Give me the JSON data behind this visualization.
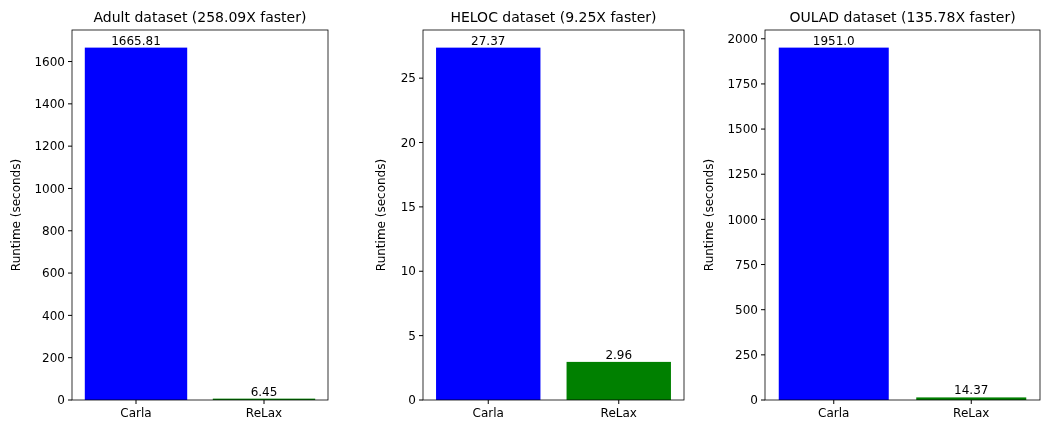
{
  "chart_data": [
    {
      "type": "bar",
      "title": "Adult dataset (258.09X faster)",
      "ylabel": "Runtime (seconds)",
      "categories": [
        "Carla",
        "ReLax"
      ],
      "values": [
        1665.81,
        6.45
      ],
      "colors": [
        "#0000ff",
        "#008000"
      ],
      "value_labels": [
        "1665.81",
        "6.45"
      ],
      "ylim": [
        0,
        1749.1
      ],
      "yticks": [
        0,
        200,
        400,
        600,
        800,
        1000,
        1200,
        1400,
        1600
      ]
    },
    {
      "type": "bar",
      "title": "HELOC dataset (9.25X faster)",
      "ylabel": "Runtime (seconds)",
      "categories": [
        "Carla",
        "ReLax"
      ],
      "values": [
        27.37,
        2.96
      ],
      "colors": [
        "#0000ff",
        "#008000"
      ],
      "value_labels": [
        "27.37",
        "2.96"
      ],
      "ylim": [
        0,
        28.74
      ],
      "yticks": [
        0,
        5,
        10,
        15,
        20,
        25
      ]
    },
    {
      "type": "bar",
      "title": "OULAD dataset (135.78X faster)",
      "ylabel": "Runtime (seconds)",
      "categories": [
        "Carla",
        "ReLax"
      ],
      "values": [
        1951.0,
        14.37
      ],
      "colors": [
        "#0000ff",
        "#008000"
      ],
      "value_labels": [
        "1951.0",
        "14.37"
      ],
      "ylim": [
        0,
        2048.55
      ],
      "yticks": [
        0,
        250,
        500,
        750,
        1000,
        1250,
        1500,
        1750,
        2000
      ]
    }
  ]
}
